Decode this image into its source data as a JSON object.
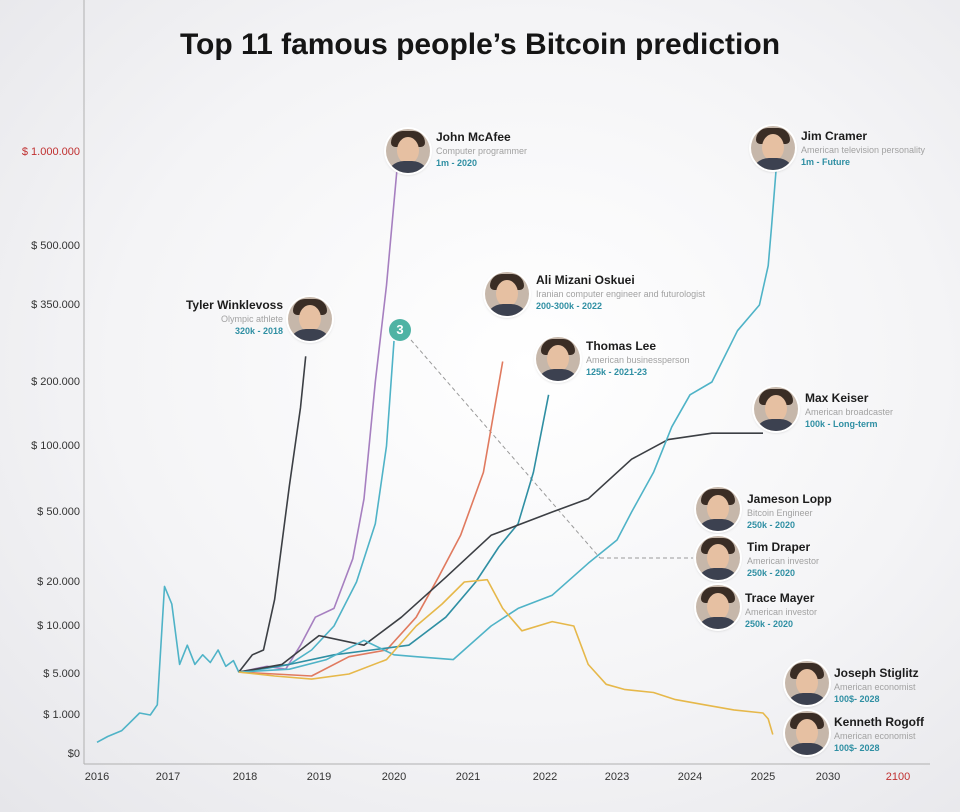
{
  "title": "Top 11 famous people’s Bitcoin prediction",
  "badge": "3",
  "chart_data": {
    "type": "line",
    "title": "Top 11 famous people’s Bitcoin prediction",
    "xlabel": "",
    "ylabel": "",
    "x_ticks": [
      "2016",
      "2017",
      "2018",
      "2019",
      "2020",
      "2021",
      "2022",
      "2023",
      "2024",
      "2025",
      "2030",
      "2100"
    ],
    "y_ticks": [
      "$ 1.000.000",
      "$ 500.000",
      "$ 350.000",
      "$ 200.000",
      "$ 100.000",
      "$ 50.000",
      "$ 20.000",
      "$ 10.000",
      "$ 5.000",
      "$ 1.000",
      "$0"
    ],
    "y_tick_values": [
      1000000,
      500000,
      350000,
      200000,
      100000,
      50000,
      20000,
      10000,
      5000,
      1000,
      0
    ],
    "grid": false,
    "series": [
      {
        "name": "History",
        "color": "#4fb3c7",
        "x": [
          2016.0,
          2016.15,
          2016.35,
          2016.6,
          2016.75,
          2016.85,
          2016.95,
          2017.05,
          2017.15,
          2017.25,
          2017.35,
          2017.45,
          2017.55,
          2017.65,
          2017.75,
          2017.85,
          2017.92
        ],
        "y": [
          300,
          450,
          600,
          1200,
          1000,
          2000,
          19000,
          15000,
          6000,
          8000,
          6000,
          7000,
          6200,
          7500,
          5800,
          6400,
          5200
        ]
      },
      {
        "name": "Tyler Winklevoss",
        "color": "#3c3f44",
        "x": [
          2017.92,
          2018.1,
          2018.25,
          2018.4,
          2018.6,
          2018.75,
          2018.82
        ],
        "y": [
          5200,
          7000,
          7500,
          16000,
          70000,
          160000,
          250000
        ]
      },
      {
        "name": "John McAfee",
        "color": "#a67fc0",
        "x": [
          2017.92,
          2018.3,
          2018.55,
          2018.75,
          2018.95,
          2019.2,
          2019.45,
          2019.6,
          2019.75,
          2019.9,
          2020.05
        ],
        "y": [
          5200,
          5800,
          5500,
          8000,
          12000,
          14000,
          30000,
          60000,
          200000,
          400000,
          950000
        ]
      },
      {
        "name": "Jameson Lopp",
        "color": "#4fb3c7",
        "x": [
          2017.92,
          2018.3,
          2018.6,
          2018.9,
          2019.2,
          2019.5,
          2019.75,
          2019.9,
          2020.0
        ],
        "y": [
          5200,
          5600,
          6000,
          7500,
          10000,
          20000,
          45000,
          100000,
          280000
        ]
      },
      {
        "name": "Ali Mizani Oskuei",
        "color": "#e07a5f",
        "x": [
          2017.92,
          2018.4,
          2018.9,
          2019.4,
          2019.9,
          2020.3,
          2020.6,
          2020.9,
          2021.2,
          2021.45
        ],
        "y": [
          5200,
          5000,
          4800,
          6800,
          7500,
          12000,
          22000,
          40000,
          80000,
          240000
        ]
      },
      {
        "name": "Thomas Lee",
        "color": "#2f8fa3",
        "x": [
          2017.92,
          2018.6,
          2019.2,
          2019.7,
          2020.2,
          2020.7,
          2021.1,
          2021.4,
          2021.65,
          2021.85,
          2022.05
        ],
        "y": [
          5200,
          6000,
          7000,
          7500,
          8000,
          12000,
          20000,
          35000,
          45000,
          80000,
          180000
        ]
      },
      {
        "name": "Max Keiser",
        "color": "#3c3f44",
        "x": [
          2017.92,
          2018.5,
          2019.0,
          2019.6,
          2020.1,
          2020.7,
          2021.3,
          2022.1,
          2022.6,
          2023.2,
          2023.7,
          2024.3,
          2025.0
        ],
        "y": [
          5200,
          6000,
          9000,
          8000,
          12000,
          22000,
          40000,
          50000,
          60000,
          90000,
          110000,
          120000,
          120000
        ]
      },
      {
        "name": "Tim Draper",
        "color": "#4fb3c7",
        "x": [
          2017.92,
          2018.6,
          2019.1,
          2019.6,
          2020.0,
          2020.3,
          2020.8,
          2021.3,
          2021.65,
          2022.1,
          2022.6,
          2023.0,
          2023.2,
          2023.5,
          2023.75,
          2024.0,
          2024.3,
          2024.65,
          2024.95,
          2025.4,
          2025.65,
          2026.0
        ],
        "y": [
          5200,
          5500,
          6500,
          8500,
          7000,
          6800,
          6500,
          10000,
          14000,
          17000,
          28000,
          38000,
          50000,
          80000,
          130000,
          180000,
          200000,
          300000,
          350000,
          450000,
          600000,
          900000
        ]
      },
      {
        "name": "Kenneth Rogoff",
        "color": "#e6b84a",
        "x": [
          2017.92,
          2018.4,
          2018.9,
          2019.4,
          2019.9,
          2020.3,
          2020.65,
          2020.95,
          2021.25,
          2021.45,
          2021.7,
          2022.1,
          2022.4,
          2022.6,
          2022.85,
          2023.1,
          2023.5,
          2023.8,
          2024.2,
          2024.6,
          2025.0,
          2025.4,
          2025.75
        ],
        "y": [
          5200,
          4800,
          4500,
          5000,
          6500,
          10000,
          15000,
          20000,
          21000,
          14000,
          9500,
          11000,
          10000,
          6000,
          4000,
          3500,
          3200,
          2500,
          2000,
          1500,
          1200,
          900,
          500
        ]
      }
    ],
    "annotations": [
      {
        "name": "Tyler Winklevoss",
        "role": "Olympic athlete",
        "prediction": "320k - 2018"
      },
      {
        "name": "John McAfee",
        "role": "Computer programmer",
        "prediction": "1m - 2020"
      },
      {
        "name": "Jim Cramer",
        "role": "American television personality",
        "prediction": "1m - Future"
      },
      {
        "name": "Ali Mizani Oskuei",
        "role": "Iranian computer engineer and futurologist",
        "prediction": "200-300k - 2022"
      },
      {
        "name": "Thomas Lee",
        "role": "American businessperson",
        "prediction": "125k - 2021-23"
      },
      {
        "name": "Max Keiser",
        "role": "American broadcaster",
        "prediction": "100k - Long-term"
      },
      {
        "name": "Jameson Lopp",
        "role": "Bitcoin Engineer",
        "prediction": "250k - 2020"
      },
      {
        "name": "Tim Draper",
        "role": "American investor",
        "prediction": "250k - 2020"
      },
      {
        "name": "Trace Mayer",
        "role": "American investor",
        "prediction": "250k - 2020"
      },
      {
        "name": "Joseph Stiglitz",
        "role": "American economist",
        "prediction": "100$- 2028"
      },
      {
        "name": "Kenneth Rogoff",
        "role": "American economist",
        "prediction": "100$- 2028"
      }
    ]
  }
}
